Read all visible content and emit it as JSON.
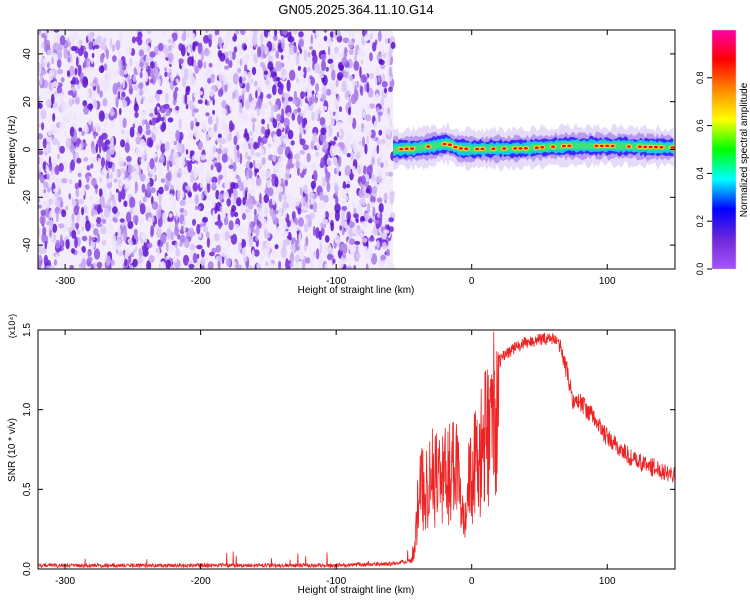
{
  "title": "GN05.2025.364.11.10.G14",
  "chart_data": [
    {
      "type": "heatmap",
      "xlabel": "Height of straight line (km)",
      "ylabel": "Frequency (Hz)",
      "xlim": [
        -320,
        150
      ],
      "ylim": [
        -50,
        50
      ],
      "x_ticks": [
        -300,
        -200,
        -100,
        0,
        100
      ],
      "y_ticks": [
        -40,
        -20,
        0,
        20,
        40
      ],
      "noise_region_x": [
        -320,
        -58
      ],
      "signal_region_x": [
        -58,
        150
      ],
      "signal_frequency": 0,
      "signal_drift": [
        [
          -58,
          0
        ],
        [
          -40,
          0.5
        ],
        [
          -18,
          2.5
        ],
        [
          -10,
          0.5
        ],
        [
          0,
          0.2
        ],
        [
          40,
          0.5
        ],
        [
          70,
          1.5
        ],
        [
          100,
          1.5
        ],
        [
          150,
          0.8
        ]
      ],
      "colorbar": {
        "label": "Normalized spectral amplitude",
        "range": [
          0.0,
          1.0
        ],
        "ticks": [
          0.0,
          0.2,
          0.4,
          0.6,
          0.8
        ],
        "colors": [
          "#a855f7",
          "#6d28d9",
          "#0000ff",
          "#00ffff",
          "#00ff00",
          "#ffff00",
          "#ff8800",
          "#ff0000",
          "#ff00aa"
        ]
      },
      "grid": false
    },
    {
      "type": "line",
      "xlabel": "Height of straight line (km)",
      "ylabel": "SNR (10 * v/v)",
      "y_multiplier": "(x10⁴)",
      "xlim": [
        -320,
        150
      ],
      "ylim": [
        0.0,
        1.5
      ],
      "x_ticks": [
        -300,
        -200,
        -100,
        0,
        100
      ],
      "y_ticks": [
        0.0,
        0.5,
        1.0,
        1.5
      ],
      "y_tick_labels": [
        "0.0",
        "0.5",
        "1.0",
        "1.5"
      ],
      "series": [
        {
          "color": "#ee2222",
          "x": [
            -320,
            -250,
            -200,
            -150,
            -100,
            -60,
            -45,
            -42,
            -40,
            -38,
            -35,
            -30,
            -25,
            -20,
            -15,
            -10,
            -8,
            -5,
            0,
            5,
            10,
            15,
            20,
            25,
            30,
            40,
            50,
            60,
            65,
            70,
            75,
            80,
            90,
            100,
            110,
            120,
            130,
            140,
            150
          ],
          "y": [
            0.02,
            0.02,
            0.02,
            0.02,
            0.02,
            0.03,
            0.05,
            0.2,
            0.45,
            0.6,
            0.65,
            0.7,
            0.75,
            0.7,
            0.8,
            0.9,
            0.5,
            0.55,
            0.75,
            0.85,
            1.0,
            1.2,
            1.3,
            1.35,
            1.38,
            1.42,
            1.44,
            1.45,
            1.4,
            1.25,
            1.05,
            1.05,
            0.95,
            0.82,
            0.75,
            0.68,
            0.65,
            0.62,
            0.6
          ]
        }
      ],
      "grid": false
    }
  ]
}
